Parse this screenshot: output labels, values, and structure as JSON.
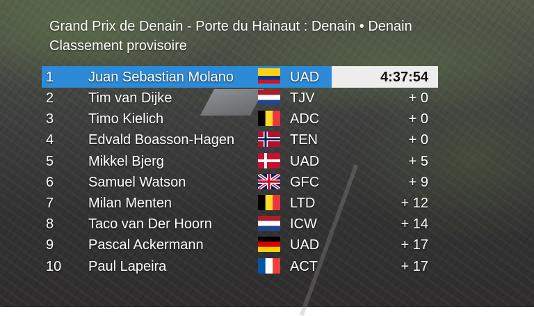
{
  "header": {
    "race_title": "Grand Prix de Denain - Porte du Hainaut : Denain • Denain",
    "subtitle": "Classement provisoire"
  },
  "results": [
    {
      "pos": "1",
      "name": "Juan Sebastian Molano",
      "flag": "colombia-flag",
      "team": "UAD",
      "gap": "4:37:54"
    },
    {
      "pos": "2",
      "name": "Tim van Dijke",
      "flag": "netherlands-flag",
      "team": "TJV",
      "gap": "+ 0"
    },
    {
      "pos": "3",
      "name": "Timo Kielich",
      "flag": "belgium-flag",
      "team": "ADC",
      "gap": "+ 0"
    },
    {
      "pos": "4",
      "name": "Edvald Boasson-Hagen",
      "flag": "norway-flag",
      "team": "TEN",
      "gap": "+ 0"
    },
    {
      "pos": "5",
      "name": "Mikkel Bjerg",
      "flag": "denmark-flag",
      "team": "UAD",
      "gap": "+ 5"
    },
    {
      "pos": "6",
      "name": "Samuel Watson",
      "flag": "uk-flag",
      "team": "GFC",
      "gap": "+ 9"
    },
    {
      "pos": "7",
      "name": "Milan Menten",
      "flag": "belgium-flag",
      "team": "LTD",
      "gap": "+ 12"
    },
    {
      "pos": "8",
      "name": "Taco van Der Hoorn",
      "flag": "netherlands-flag",
      "team": "ICW",
      "gap": "+ 14"
    },
    {
      "pos": "9",
      "name": "Pascal Ackermann",
      "flag": "germany-flag",
      "team": "UAD",
      "gap": "+ 17"
    },
    {
      "pos": "10",
      "name": "Paul Lapeira",
      "flag": "france-flag",
      "team": "ACT",
      "gap": "+ 17"
    }
  ],
  "colors": {
    "highlight": "#2d8ad6",
    "time_box": "#ededed"
  }
}
